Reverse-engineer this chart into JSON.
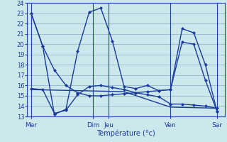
{
  "background_color": "#cce8ec",
  "grid_color": "#99bbcc",
  "line_color": "#1a3a9e",
  "xlabel": "Température (°c)",
  "ylim": [
    13,
    24
  ],
  "yticks": [
    13,
    14,
    15,
    16,
    17,
    18,
    19,
    20,
    21,
    22,
    23,
    24
  ],
  "day_labels": [
    "Mer",
    "",
    "Dim",
    "Jeu",
    "",
    "Ven",
    "",
    "Sar"
  ],
  "day_positions": [
    0,
    8,
    16,
    20,
    28,
    36,
    44,
    48
  ],
  "xlim": [
    -1,
    50
  ],
  "line_zigzag_x": [
    0,
    3,
    6,
    9,
    12,
    15,
    18,
    21,
    24,
    27,
    30,
    33,
    36,
    39,
    42,
    45,
    48
  ],
  "line_zigzag_y": [
    23.0,
    19.8,
    13.2,
    13.7,
    19.3,
    23.1,
    23.5,
    20.3,
    15.9,
    15.7,
    16.0,
    15.5,
    15.6,
    21.5,
    21.1,
    18.0,
    13.5
  ],
  "line_smooth_x": [
    0,
    3,
    6,
    9,
    12,
    15,
    18,
    21,
    24,
    27,
    30,
    33,
    36,
    39,
    42,
    45,
    48
  ],
  "line_smooth_y": [
    23.0,
    19.8,
    17.5,
    16.0,
    15.3,
    15.0,
    15.0,
    15.1,
    15.2,
    15.3,
    15.4,
    15.5,
    15.6,
    20.2,
    20.0,
    16.5,
    13.5
  ],
  "line_lower_x": [
    0,
    3,
    6,
    9,
    12,
    15,
    18,
    21,
    24,
    27,
    30,
    33,
    36,
    39,
    42,
    45,
    48
  ],
  "line_lower_y": [
    15.7,
    15.6,
    13.3,
    13.6,
    15.1,
    15.9,
    16.0,
    15.8,
    15.6,
    15.3,
    15.1,
    14.9,
    14.2,
    14.2,
    14.1,
    14.0,
    13.8
  ],
  "line_flat_x": [
    0,
    6,
    12,
    18,
    24,
    36,
    48
  ],
  "line_flat_y": [
    15.6,
    15.55,
    15.5,
    15.45,
    15.4,
    13.9,
    13.8
  ],
  "vline_positions": [
    0,
    16,
    20,
    36,
    48
  ],
  "marker_size": 2.5,
  "line_width": 1.0
}
